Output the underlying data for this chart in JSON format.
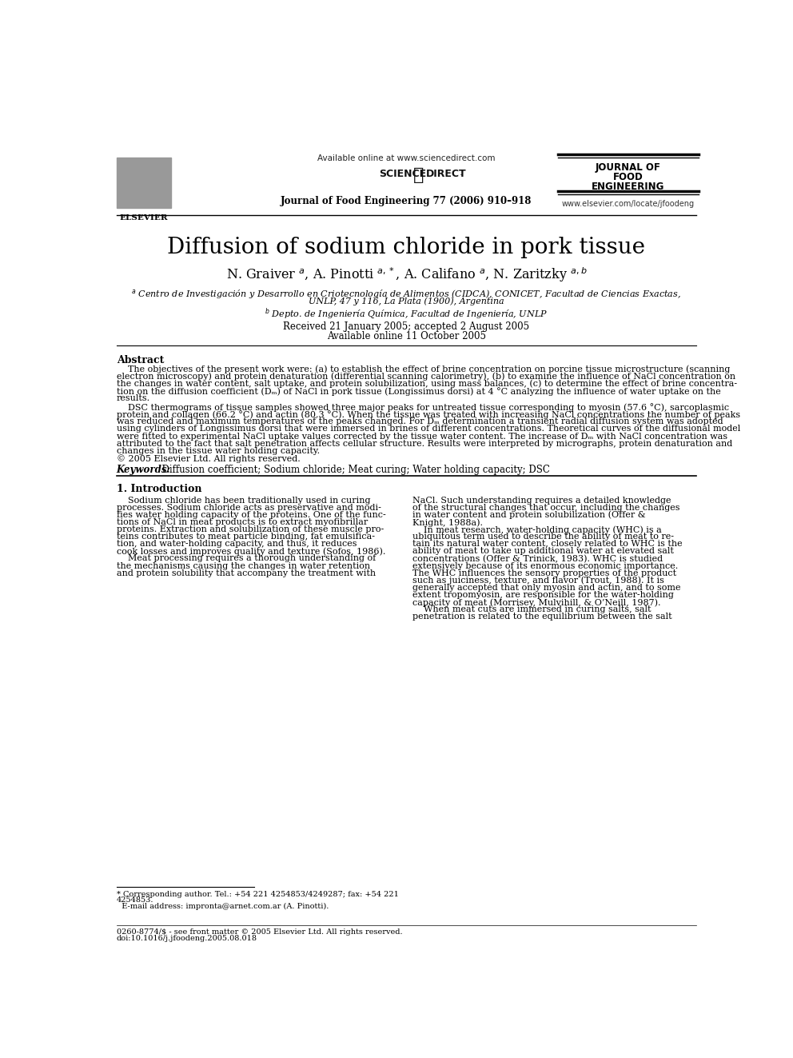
{
  "page_title": "Diffusion of sodium chloride in pork tissue",
  "authors": "N. Graiver $^a$, A. Pinotti $^{a,*}$, A. Califano $^a$, N. Zaritzky $^{a,b}$",
  "affil_a": "$^a$ Centro de Investigación y Desarrollo en Criotecnología de Alimentos (CIDCA), CONICET, Facultad de Ciencias Exactas,",
  "affil_a2": "UNLP, 47 y 116, La Plata (1900), Argentina",
  "affil_b": "$^b$ Depto. de Ingeniería Química, Facultad de Ingeniería, UNLP",
  "received": "Received 21 January 2005; accepted 2 August 2005",
  "available": "Available online 11 October 2005",
  "header_available": "Available online at www.sciencedirect.com",
  "journal_name": "Journal of Food Engineering 77 (2006) 910–918",
  "journal_url": "www.elsevier.com/locate/jfoodeng",
  "abstract_title": "Abstract",
  "abstract_p1_lines": [
    "    The objectives of the present work were: (a) to establish the effect of brine concentration on porcine tissue microstructure (scanning",
    "electron microscopy) and protein denaturation (differential scanning calorimetry), (b) to examine the influence of NaCl concentration on",
    "the changes in water content, salt uptake, and protein solubilization, using mass balances, (c) to determine the effect of brine concentra-",
    "tion on the diffusion coefficient (Dₘ) of NaCl in pork tissue (Longissimus dorsi) at 4 °C analyzing the influence of water uptake on the",
    "results."
  ],
  "abstract_p2_lines": [
    "    DSC thermograms of tissue samples showed three major peaks for untreated tissue corresponding to myosin (57.6 °C), sarcoplasmic",
    "protein and collagen (66.2 °C) and actin (80.3 °C). When the tissue was treated with increasing NaCl concentrations the number of peaks",
    "was reduced and maximum temperatures of the peaks changed. For Dₘ determination a transient radial diffusion system was adopted",
    "using cylinders of Longissimus dorsi that were immersed in brines of different concentrations. Theoretical curves of the diffusional model",
    "were fitted to experimental NaCl uptake values corrected by the tissue water content. The increase of Dₘ with NaCl concentration was",
    "attributed to the fact that salt penetration affects cellular structure. Results were interpreted by micrographs, protein denaturation and",
    "changes in the tissue water holding capacity.",
    "© 2005 Elsevier Ltd. All rights reserved."
  ],
  "keywords_label": "Keywords:",
  "keywords_text": "  Diffusion coefficient; Sodium chloride; Meat curing; Water holding capacity; DSC",
  "section1_title": "1. Introduction",
  "intro_col1_lines": [
    "    Sodium chloride has been traditionally used in curing",
    "processes. Sodium chloride acts as preservative and modi-",
    "fies water holding capacity of the proteins. One of the func-",
    "tions of NaCl in meat products is to extract myofibrillar",
    "proteins. Extraction and solubilization of these muscle pro-",
    "teins contributes to meat particle binding, fat emulsifica-",
    "tion, and water-holding capacity, and thus, it reduces",
    "cook losses and improves quality and texture (Sofos, 1986).",
    "    Meat processing requires a thorough understanding of",
    "the mechanisms causing the changes in water retention",
    "and protein solubility that accompany the treatment with"
  ],
  "intro_col2_lines": [
    "NaCl. Such understanding requires a detailed knowledge",
    "of the structural changes that occur, including the changes",
    "in water content and protein solubilization (Offer &",
    "Knight, 1988a).",
    "    In meat research, water-holding capacity (WHC) is a",
    "ubiquitous term used to describe the ability of meat to re-",
    "tain its natural water content, closely related to WHC is the",
    "ability of meat to take up additional water at elevated salt",
    "concentrations (Offer & Trinick, 1983). WHC is studied",
    "extensively because of its enormous economic importance.",
    "The WHC influences the sensory properties of the product",
    "such as juiciness, texture, and flavor (Trout, 1988). It is",
    "generally accepted that only myosin and actin, and to some",
    "extent tropomyosin, are responsible for the water-holding",
    "capacity of meat (Morrisey, Mulvihill, & O’Neill, 1987).",
    "    When meat cuts are immersed in curing salts, salt",
    "penetration is related to the equilibrium between the salt"
  ],
  "footnote_star_lines": [
    "* Corresponding author. Tel.: +54 221 4254853/4249287; fax: +54 221",
    "4254853.",
    "  E-mail address: impronta@arnet.com.ar (A. Pinotti)."
  ],
  "footnote_bottom_lines": [
    "0260-8774/$ - see front matter © 2005 Elsevier Ltd. All rights reserved.",
    "doi:10.1016/j.jfoodeng.2005.08.018"
  ],
  "background_color": "#ffffff",
  "text_color": "#000000"
}
